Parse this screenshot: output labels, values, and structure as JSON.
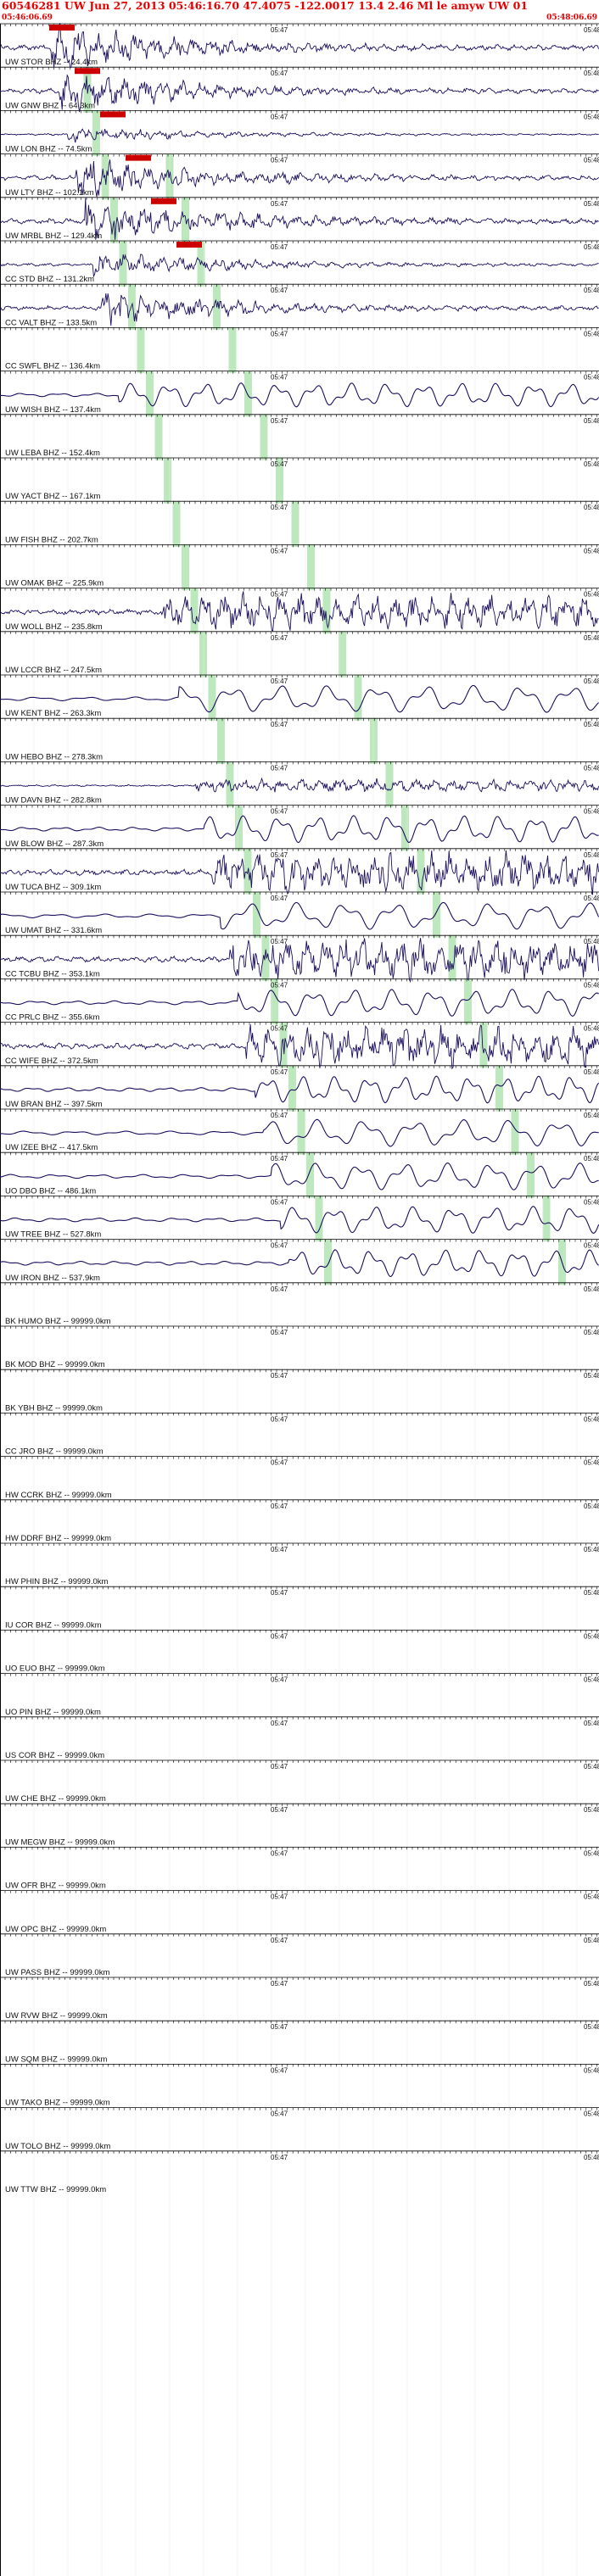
{
  "header": {
    "title": "60546281 UW Jun 27, 2013 05:46:16.70    47.4075 -122.0017 13.4 2.46 Ml le amyw UW 01",
    "start_time": "05:46:06.69",
    "end_time": "05:48:06.69",
    "title_color": "#e60000"
  },
  "colors": {
    "trace": "#1c0e5e",
    "pick_bar": "#cc0000",
    "phase_band": "#bde8bd",
    "axis": "#000000"
  },
  "chart_data": {
    "type": "line",
    "x_range_minutes": [
      "05:46:06.69",
      "05:48:06.69"
    ],
    "tick_labels": [
      "05:47",
      "05:48"
    ],
    "stations": [
      {
        "label": "UW STOR BHZ -- 24.4km",
        "amp": 0.9,
        "noisy": true
      },
      {
        "label": "UW GNW BHZ -- 64.3km",
        "amp": 0.8,
        "noisy": true
      },
      {
        "label": "UW LON BHZ -- 74.5km",
        "amp": 0.3,
        "noisy": true
      },
      {
        "label": "UW LTY BHZ -- 102.1km",
        "amp": 0.8,
        "noisy": true
      },
      {
        "label": "UW MRBL BHZ -- 129.4km",
        "amp": 0.9,
        "noisy": true
      },
      {
        "label": "CC STD BHZ -- 131.2km",
        "amp": 0.5,
        "noisy": true
      },
      {
        "label": "CC VALT BHZ -- 133.5km",
        "amp": 0.7,
        "noisy": true
      },
      {
        "label": "CC SWFL BHZ -- 136.4km",
        "amp": 0.0,
        "noisy": false
      },
      {
        "label": "UW WISH BHZ -- 137.4km",
        "amp": 0.8,
        "noisy": false
      },
      {
        "label": "UW LEBA BHZ -- 152.4km",
        "amp": 0.0,
        "noisy": false
      },
      {
        "label": "UW YACT BHZ -- 167.1km",
        "amp": 0.0,
        "noisy": false
      },
      {
        "label": "UW FISH BHZ -- 202.7km",
        "amp": 0.0,
        "noisy": false
      },
      {
        "label": "UW OMAK BHZ -- 225.9km",
        "amp": 0.0,
        "noisy": false
      },
      {
        "label": "UW WOLL BHZ -- 235.8km",
        "amp": 0.8,
        "noisy": true
      },
      {
        "label": "UW LCCR BHZ -- 247.5km",
        "amp": 0.0,
        "noisy": false
      },
      {
        "label": "UW KENT BHZ -- 263.3km",
        "amp": 0.9,
        "noisy": false
      },
      {
        "label": "UW HEBO BHZ -- 278.3km",
        "amp": 0.0,
        "noisy": false
      },
      {
        "label": "UW DAVN BHZ -- 282.8km",
        "amp": 0.3,
        "noisy": true
      },
      {
        "label": "UW BLOW BHZ -- 287.3km",
        "amp": 0.9,
        "noisy": false
      },
      {
        "label": "UW TUCA BHZ -- 309.1km",
        "amp": 0.9,
        "noisy": true
      },
      {
        "label": "UW UMAT BHZ -- 331.6km",
        "amp": 0.9,
        "noisy": false
      },
      {
        "label": "CC TCBU BHZ -- 353.1km",
        "amp": 0.9,
        "noisy": true
      },
      {
        "label": "CC PRLC BHZ -- 355.6km",
        "amp": 0.9,
        "noisy": false
      },
      {
        "label": "CC WIFE BHZ -- 372.5km",
        "amp": 0.9,
        "noisy": true
      },
      {
        "label": "UW BRAN BHZ -- 397.5km",
        "amp": 0.9,
        "noisy": false
      },
      {
        "label": "UW IZEE BHZ -- 417.5km",
        "amp": 0.9,
        "noisy": false
      },
      {
        "label": "UO DBO BHZ -- 486.1km",
        "amp": 0.9,
        "noisy": false
      },
      {
        "label": "UW TREE BHZ -- 527.8km",
        "amp": 0.9,
        "noisy": false
      },
      {
        "label": "UW IRON BHZ -- 537.9km",
        "amp": 0.9,
        "noisy": false
      },
      {
        "label": "BK HUMO BHZ -- 99999.0km",
        "amp": 0.0,
        "noisy": false
      },
      {
        "label": "BK MOD BHZ -- 99999.0km",
        "amp": 0.0,
        "noisy": false
      },
      {
        "label": "BK YBH BHZ -- 99999.0km",
        "amp": 0.0,
        "noisy": false
      },
      {
        "label": "CC JRO BHZ -- 99999.0km",
        "amp": 0.0,
        "noisy": false
      },
      {
        "label": "HW CCRK BHZ -- 99999.0km",
        "amp": 0.0,
        "noisy": false
      },
      {
        "label": "HW DDRF BHZ -- 99999.0km",
        "amp": 0.0,
        "noisy": false
      },
      {
        "label": "HW PHIN BHZ -- 99999.0km",
        "amp": 0.0,
        "noisy": false
      },
      {
        "label": "IU COR BHZ -- 99999.0km",
        "amp": 0.0,
        "noisy": false
      },
      {
        "label": "UO EUO BHZ -- 99999.0km",
        "amp": 0.0,
        "noisy": false
      },
      {
        "label": "UO PIN BHZ -- 99999.0km",
        "amp": 0.0,
        "noisy": false
      },
      {
        "label": "US COR BHZ -- 99999.0km",
        "amp": 0.0,
        "noisy": false
      },
      {
        "label": "UW CHE BHZ -- 99999.0km",
        "amp": 0.0,
        "noisy": false
      },
      {
        "label": "UW MEGW BHZ -- 99999.0km",
        "amp": 0.0,
        "noisy": false
      },
      {
        "label": "UW OFR BHZ -- 99999.0km",
        "amp": 0.0,
        "noisy": false
      },
      {
        "label": "UW OPC BHZ -- 99999.0km",
        "amp": 0.0,
        "noisy": false
      },
      {
        "label": "UW PASS BHZ -- 99999.0km",
        "amp": 0.0,
        "noisy": false
      },
      {
        "label": "UW RVW BHZ -- 99999.0km",
        "amp": 0.0,
        "noisy": false
      },
      {
        "label": "UW SQM BHZ -- 99999.0km",
        "amp": 0.0,
        "noisy": false
      },
      {
        "label": "UW TAKO BHZ -- 99999.0km",
        "amp": 0.0,
        "noisy": false
      },
      {
        "label": "UW TOLO BHZ -- 99999.0km",
        "amp": 0.0,
        "noisy": false
      },
      {
        "label": "UW TTW BHZ -- 99999.0km",
        "amp": 0.0,
        "noisy": false
      }
    ]
  }
}
